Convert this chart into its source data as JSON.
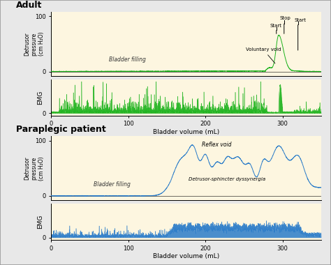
{
  "fig_bg_color": "#e8e8e8",
  "panel_bg_color": "#fdf6e0",
  "adult_color": "#1db31d",
  "para_color": "#2b7cc9",
  "xlim": [
    0,
    350
  ],
  "ylim_pressure": [
    -8,
    108
  ],
  "ylim_emg": [
    -5,
    75
  ],
  "xticks": [
    0,
    100,
    200,
    300
  ],
  "yticks_pressure": [
    0,
    100
  ],
  "yticks_emg": [
    0
  ],
  "xlabel": "Bladder volume (mL)",
  "ylabel_pressure": "Detrusor\npressure\n(cm H₂O)",
  "ylabel_emg": "EMG",
  "adult_title": "Adult",
  "para_title": "Paraplegic patient"
}
